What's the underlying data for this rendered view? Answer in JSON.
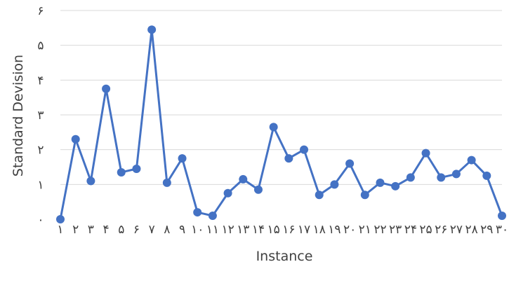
{
  "chart_data": {
    "type": "line",
    "title": "",
    "xlabel": "Instance",
    "ylabel": "Standard Devision",
    "x": [
      "١",
      "٢",
      "٣",
      "۴",
      "۵",
      "۶",
      "٧",
      "٨",
      "٩",
      "١٠",
      "١١",
      "١٢",
      "١٣",
      "١۴",
      "١۵",
      "١۶",
      "١٧",
      "١٨",
      "١٩",
      "٢٠",
      "٢١",
      "٢٢",
      "٢٣",
      "٢۴",
      "٢۵",
      "٢۶",
      "٢٧",
      "٢٨",
      "٢٩",
      "٣٠"
    ],
    "series": [
      {
        "values": [
          0.0,
          2.3,
          1.1,
          3.75,
          1.35,
          1.45,
          5.45,
          1.05,
          1.75,
          0.2,
          0.1,
          0.75,
          1.15,
          0.85,
          2.65,
          1.75,
          2.0,
          0.7,
          1.0,
          1.6,
          0.7,
          1.05,
          0.95,
          1.2,
          1.9,
          1.2,
          1.3,
          1.7,
          1.25,
          0.1
        ],
        "color": "#4472C4"
      }
    ],
    "ylim": [
      0,
      6
    ],
    "yticks": [
      "٠",
      "١",
      "٢",
      "٣",
      "۴",
      "۵",
      "۶"
    ],
    "grid": true,
    "legend": "none"
  }
}
